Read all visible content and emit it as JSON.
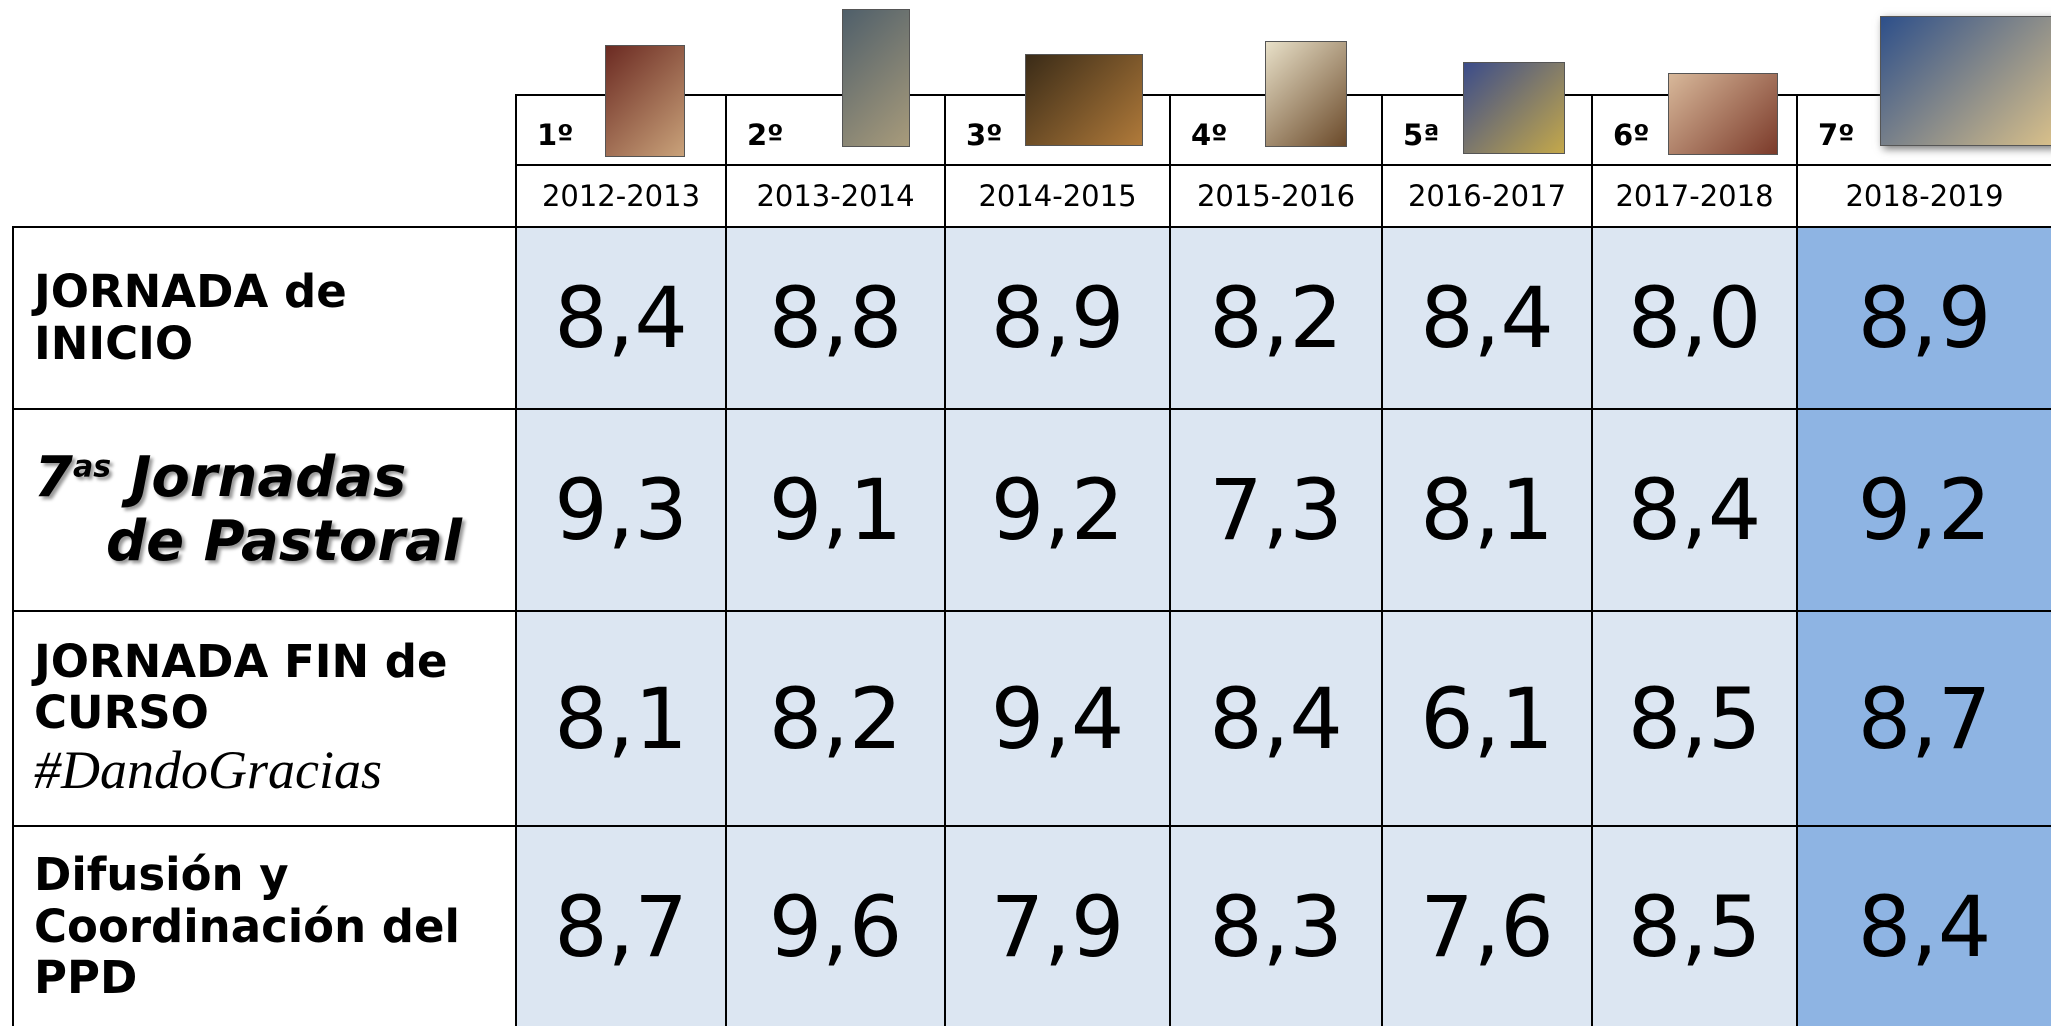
{
  "columns": [
    {
      "edition": "1º",
      "years": "2012-2013"
    },
    {
      "edition": "2º",
      "years": "2013-2014"
    },
    {
      "edition": "3º",
      "years": "2014-2015"
    },
    {
      "edition": "4º",
      "years": "2015-2016"
    },
    {
      "edition": "5ª",
      "years": "2016-2017"
    },
    {
      "edition": "6º",
      "years": "2017-2018"
    },
    {
      "edition": "7º",
      "years": "2018-2019"
    }
  ],
  "rows": [
    {
      "label": {
        "text": "JORNADA de INICIO"
      },
      "values": [
        "8,4",
        "8,8",
        "8,9",
        "8,2",
        "8,4",
        "8,0",
        "8,9"
      ]
    },
    {
      "label": {
        "prefix": "7",
        "sup": "as",
        "line1": "Jornadas",
        "line2": "de Pastoral"
      },
      "values": [
        "9,3",
        "9,1",
        "9,2",
        "7,3",
        "8,1",
        "8,4",
        "9,2"
      ]
    },
    {
      "label": {
        "text": "JORNADA FIN de CURSO",
        "hashtag": "#DandoGracias"
      },
      "values": [
        "8,1",
        "8,2",
        "9,4",
        "8,4",
        "6,1",
        "8,5",
        "8,7"
      ]
    },
    {
      "label": {
        "text": "Difusión y Coordinación del PPD"
      },
      "values": [
        "8,7",
        "9,6",
        "7,9",
        "8,3",
        "7,6",
        "8,5",
        "8,4"
      ]
    }
  ]
}
